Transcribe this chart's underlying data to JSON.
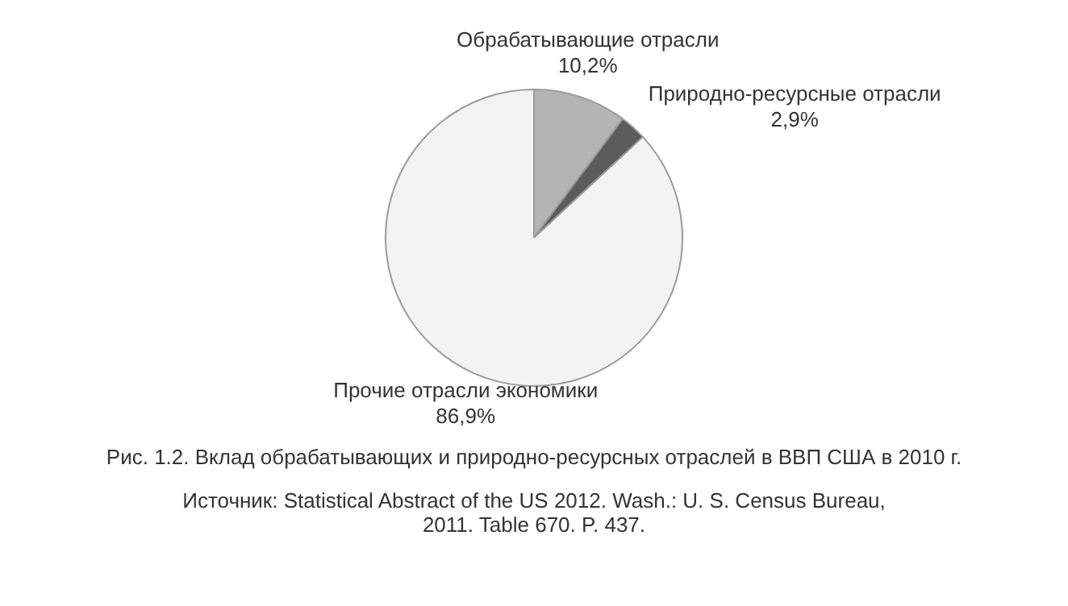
{
  "chart_data": {
    "type": "pie",
    "categories": [
      "Обрабатывающие отрасли",
      "Природно-ресурсные отрасли",
      "Прочие отрасли экономики"
    ],
    "values": [
      10.2,
      2.9,
      86.9
    ],
    "value_labels": [
      "10,2%",
      "2,9%",
      "86,9%"
    ],
    "colors": [
      "#b4b4b4",
      "#5c5c5c",
      "#f3f3f3"
    ],
    "legend": false,
    "annotations": [
      "Рис. 1.2. Вклад обрабатывающих и природно-ресурсных отраслей в ВВП США в 2010 г.",
      "Источник: Statistical Abstract of the US 2012. Wash.: U. S. Census Bureau, 2011. Table 670. P. 437."
    ]
  }
}
